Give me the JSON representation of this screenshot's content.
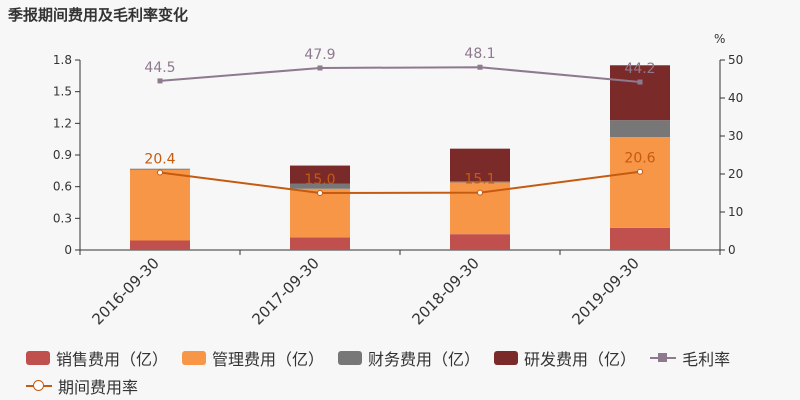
{
  "chart_data": {
    "type": "bar",
    "title": "季报期间费用及毛利率变化",
    "categories": [
      "2016-09-30",
      "2017-09-30",
      "2018-09-30",
      "2019-09-30"
    ],
    "stacked": true,
    "series": [
      {
        "name": "销售费用（亿）",
        "type": "bar",
        "axis": "left",
        "color": "#c0504d",
        "values": [
          0.09,
          0.12,
          0.15,
          0.21
        ]
      },
      {
        "name": "管理费用（亿）",
        "type": "bar",
        "axis": "left",
        "color": "#f79646",
        "values": [
          0.67,
          0.46,
          0.49,
          0.86
        ]
      },
      {
        "name": "财务费用（亿）",
        "type": "bar",
        "axis": "left",
        "color": "#777777",
        "values": [
          0.01,
          0.05,
          0.01,
          0.16
        ]
      },
      {
        "name": "研发费用（亿）",
        "type": "bar",
        "axis": "left",
        "color": "#7b2a2a",
        "values": [
          0.0,
          0.17,
          0.31,
          0.52
        ]
      },
      {
        "name": "毛利率",
        "type": "line",
        "axis": "right",
        "color": "#8e7a8e",
        "marker": "square",
        "values": [
          44.5,
          47.9,
          48.1,
          44.2
        ],
        "labels": [
          "44.5",
          "47.9",
          "48.1",
          "44.2"
        ]
      },
      {
        "name": "期间费用率",
        "type": "line",
        "axis": "right",
        "color": "#c55a11",
        "marker": "circle",
        "values": [
          20.4,
          15.0,
          15.1,
          20.6
        ],
        "labels": [
          "20.4",
          "15.0",
          "15.1",
          "20.6"
        ]
      }
    ],
    "left_axis": {
      "ylim": [
        0,
        1.8
      ],
      "ticks": [
        "0",
        "0.3",
        "0.6",
        "0.9",
        "1.2",
        "1.5",
        "1.8"
      ]
    },
    "right_axis": {
      "ylim": [
        0,
        50
      ],
      "unit": "%",
      "ticks": [
        "0",
        "10",
        "20",
        "30",
        "40",
        "50"
      ]
    },
    "legend_position": "bottom",
    "grid": false
  }
}
